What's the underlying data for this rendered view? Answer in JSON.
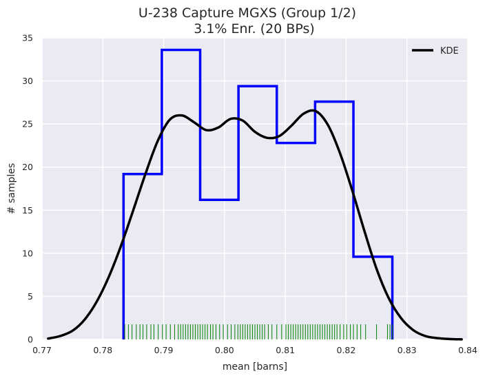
{
  "chart_data": {
    "type": "histogram",
    "title_line1": "U-238 Capture MGXS (Group 1/2)",
    "title_line2": "3.1% Enr. (20 BPs)",
    "xlabel": "mean [barns]",
    "ylabel": "# samples",
    "xlim": [
      0.77,
      0.84
    ],
    "ylim": [
      0,
      35
    ],
    "xticks": [
      "0.77",
      "0.78",
      "0.79",
      "0.80",
      "0.81",
      "0.82",
      "0.83",
      "0.84"
    ],
    "yticks": [
      "0",
      "5",
      "10",
      "15",
      "20",
      "25",
      "30",
      "35"
    ],
    "grid": true,
    "legend": {
      "position": "top-right",
      "entries": [
        "KDE"
      ]
    },
    "colors": {
      "background": "#eaeaf2",
      "histogram": "#0000ff",
      "kde": "#000000",
      "rug": "#008000",
      "grid": "#ffffff"
    },
    "histogram": {
      "bin_edges": [
        0.7834,
        0.7897,
        0.796,
        0.8023,
        0.8086,
        0.8149,
        0.8212,
        0.8276
      ],
      "counts": [
        19.2,
        33.6,
        16.2,
        29.4,
        22.8,
        27.6,
        9.6
      ]
    },
    "kde": {
      "x": [
        0.771,
        0.773,
        0.775,
        0.777,
        0.779,
        0.781,
        0.783,
        0.785,
        0.787,
        0.789,
        0.791,
        0.793,
        0.795,
        0.797,
        0.799,
        0.801,
        0.803,
        0.805,
        0.807,
        0.809,
        0.811,
        0.813,
        0.815,
        0.817,
        0.819,
        0.821,
        0.823,
        0.825,
        0.827,
        0.829,
        0.831,
        0.833,
        0.835,
        0.837,
        0.839
      ],
      "y": [
        0.1,
        0.4,
        1.0,
        2.3,
        4.4,
        7.3,
        10.9,
        15.0,
        19.2,
        23.0,
        25.5,
        26.0,
        25.2,
        24.3,
        24.6,
        25.6,
        25.4,
        24.1,
        23.4,
        23.6,
        24.8,
        26.2,
        26.5,
        24.9,
        21.6,
        17.3,
        12.6,
        8.2,
        4.8,
        2.5,
        1.1,
        0.4,
        0.15,
        0.05,
        0.01
      ]
    },
    "rug": [
      0.7836,
      0.7842,
      0.7848,
      0.7855,
      0.7861,
      0.7866,
      0.7872,
      0.7879,
      0.7884,
      0.7891,
      0.7898,
      0.7904,
      0.7911,
      0.7918,
      0.7924,
      0.7928,
      0.7932,
      0.7936,
      0.794,
      0.7944,
      0.7948,
      0.7952,
      0.7956,
      0.796,
      0.7964,
      0.7968,
      0.7972,
      0.7977,
      0.7981,
      0.7986,
      0.7992,
      0.7998,
      0.8005,
      0.8011,
      0.8017,
      0.8022,
      0.8026,
      0.803,
      0.8034,
      0.8038,
      0.8042,
      0.8046,
      0.805,
      0.8054,
      0.8058,
      0.8062,
      0.8066,
      0.8072,
      0.8078,
      0.8086,
      0.8094,
      0.8101,
      0.8105,
      0.8109,
      0.8113,
      0.8117,
      0.8121,
      0.8125,
      0.8129,
      0.8133,
      0.8137,
      0.8141,
      0.8145,
      0.8149,
      0.8153,
      0.8157,
      0.8161,
      0.8165,
      0.8169,
      0.8173,
      0.8177,
      0.8181,
      0.8185,
      0.819,
      0.8196,
      0.8201,
      0.8207,
      0.8212,
      0.8218,
      0.8224,
      0.8232,
      0.825,
      0.8268,
      0.8272,
      0.8276
    ]
  }
}
